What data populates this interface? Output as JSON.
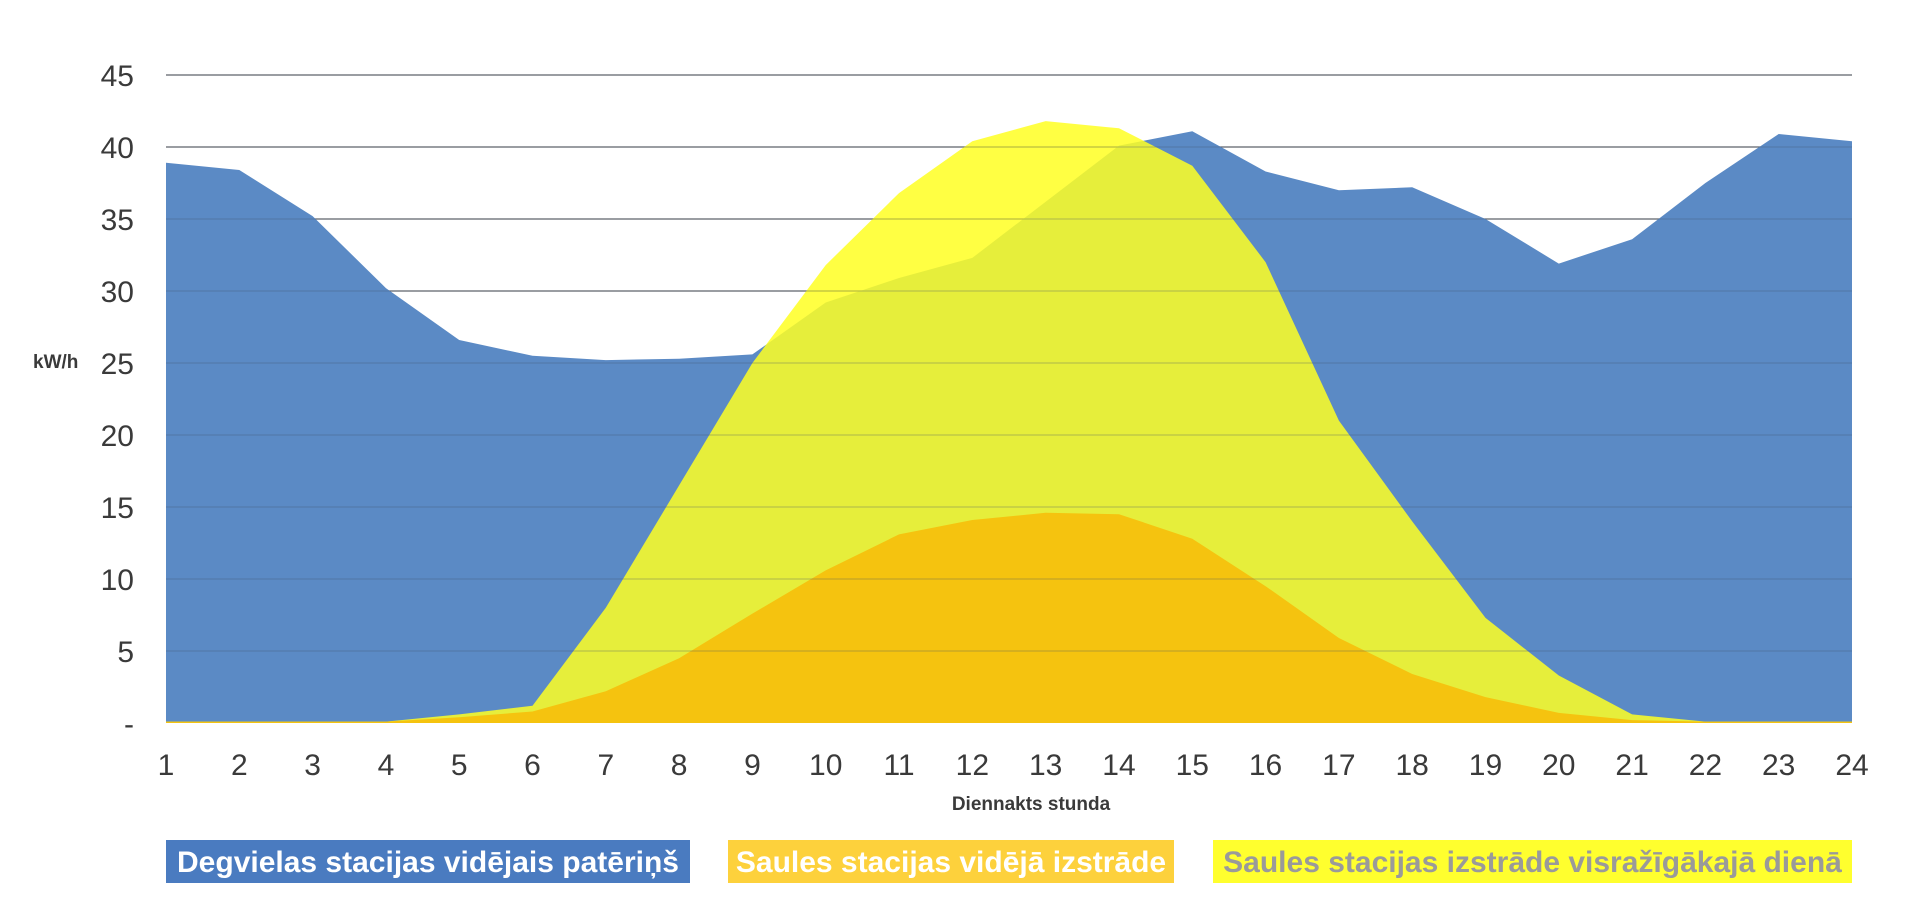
{
  "chart_data": {
    "type": "area",
    "title": "",
    "xlabel": "Diennakts stunda",
    "ylabel": "kW/h",
    "x": [
      "1",
      "2",
      "3",
      "4",
      "5",
      "6",
      "7",
      "8",
      "9",
      "10",
      "11",
      "12",
      "13",
      "14",
      "15",
      "16",
      "17",
      "18",
      "19",
      "20",
      "21",
      "22",
      "23",
      "24"
    ],
    "ylim": [
      0,
      45
    ],
    "yticks": [
      {
        "value": 0,
        "label": "-"
      },
      {
        "value": 5,
        "label": "5"
      },
      {
        "value": 10,
        "label": "10"
      },
      {
        "value": 15,
        "label": "15"
      },
      {
        "value": 20,
        "label": "20"
      },
      {
        "value": 25,
        "label": "25"
      },
      {
        "value": 30,
        "label": "30"
      },
      {
        "value": 35,
        "label": "35"
      },
      {
        "value": 40,
        "label": "40"
      },
      {
        "value": 45,
        "label": "45"
      }
    ],
    "grid": true,
    "legend_position": "bottom",
    "series": [
      {
        "name": "Degvielas stacijas vidējais patēriņš",
        "color": "#5b8ac5",
        "text_color": "#ffffff",
        "values": [
          38.9,
          38.4,
          35.2,
          30.2,
          26.6,
          25.5,
          25.2,
          25.3,
          25.6,
          29.2,
          30.9,
          32.3,
          36.2,
          40.1,
          41.1,
          38.3,
          37.0,
          37.2,
          35.0,
          31.9,
          33.6,
          37.5,
          40.9,
          40.4
        ]
      },
      {
        "name": "Saules stacijas izstrāde visražīgākajā dienā",
        "color": "#ffff22",
        "text_color": "#9a9a9a",
        "opacity": 0.85,
        "values": [
          0.1,
          0.1,
          0.1,
          0.1,
          0.6,
          1.2,
          8.0,
          16.5,
          25.0,
          31.8,
          36.8,
          40.4,
          41.8,
          41.3,
          38.7,
          32.0,
          21.0,
          14.0,
          7.3,
          3.3,
          0.6,
          0.1,
          0.1,
          0.1
        ]
      },
      {
        "name": "Saules stacijas vidējā izstrāde",
        "color": "#f5c30f",
        "text_color": "#ffffff",
        "values": [
          0.1,
          0.1,
          0.1,
          0.1,
          0.4,
          0.8,
          2.2,
          4.5,
          7.6,
          10.6,
          13.1,
          14.1,
          14.6,
          14.5,
          12.8,
          9.5,
          5.9,
          3.4,
          1.8,
          0.7,
          0.2,
          0.1,
          0.1,
          0.1
        ]
      }
    ],
    "legend": [
      {
        "label": "Degvielas stacijas vidējais patēriņš",
        "bg": "#4a7bc0",
        "fg": "#ffffff"
      },
      {
        "label": "Saules stacijas vidējā izstrāde",
        "bg": "#fdd13c",
        "fg": "#ffffff"
      },
      {
        "label": "Saules stacijas izstrāde visražīgākajā dienā",
        "bg": "#ffff2e",
        "fg": "#9a9a9a"
      }
    ]
  }
}
